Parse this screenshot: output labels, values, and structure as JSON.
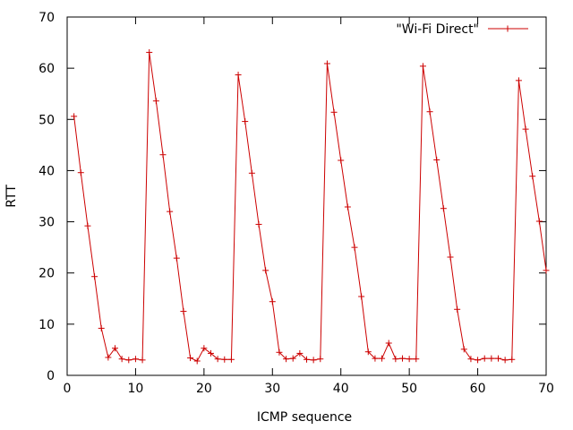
{
  "chart_data": {
    "type": "line",
    "title": "",
    "xlabel": "ICMP sequence",
    "ylabel": "RTT",
    "xlim": [
      0,
      70
    ],
    "ylim": [
      0,
      70
    ],
    "x_ticks": [
      0,
      10,
      20,
      30,
      40,
      50,
      60,
      70
    ],
    "y_ticks": [
      0,
      10,
      20,
      30,
      40,
      50,
      60,
      70
    ],
    "grid": false,
    "legend_position": "top-right",
    "series": [
      {
        "name": "\"Wi-Fi Direct\"",
        "color": "#cc0000",
        "marker": "plus",
        "x": [
          1,
          2,
          3,
          4,
          5,
          6,
          7,
          8,
          9,
          10,
          11,
          12,
          13,
          14,
          15,
          16,
          17,
          18,
          19,
          20,
          21,
          22,
          23,
          24,
          25,
          26,
          27,
          28,
          29,
          30,
          31,
          32,
          33,
          34,
          35,
          36,
          37,
          38,
          39,
          40,
          41,
          42,
          43,
          44,
          45,
          46,
          47,
          48,
          49,
          50,
          51,
          52,
          53,
          54,
          55,
          56,
          57,
          58,
          59,
          60,
          61,
          62,
          63,
          64,
          65,
          66,
          67,
          68,
          69,
          70
        ],
        "y": [
          50.6,
          39.6,
          29.2,
          19.3,
          9.2,
          3.5,
          5.3,
          3.2,
          3.0,
          3.2,
          3.0,
          63.1,
          53.6,
          43.1,
          32.0,
          22.9,
          12.5,
          3.4,
          2.8,
          5.3,
          4.3,
          3.2,
          3.1,
          3.1,
          58.7,
          49.6,
          39.5,
          29.5,
          20.5,
          14.4,
          4.5,
          3.2,
          3.3,
          4.3,
          3.1,
          3.0,
          3.2,
          60.9,
          51.4,
          42.0,
          32.9,
          25.0,
          15.4,
          4.6,
          3.3,
          3.3,
          6.3,
          3.2,
          3.3,
          3.2,
          3.2,
          60.4,
          51.5,
          42.1,
          32.6,
          23.1,
          12.9,
          5.1,
          3.2,
          3.0,
          3.3,
          3.3,
          3.3,
          3.0,
          3.1,
          57.6,
          48.1,
          38.9,
          30.1,
          20.5
        ]
      }
    ]
  }
}
